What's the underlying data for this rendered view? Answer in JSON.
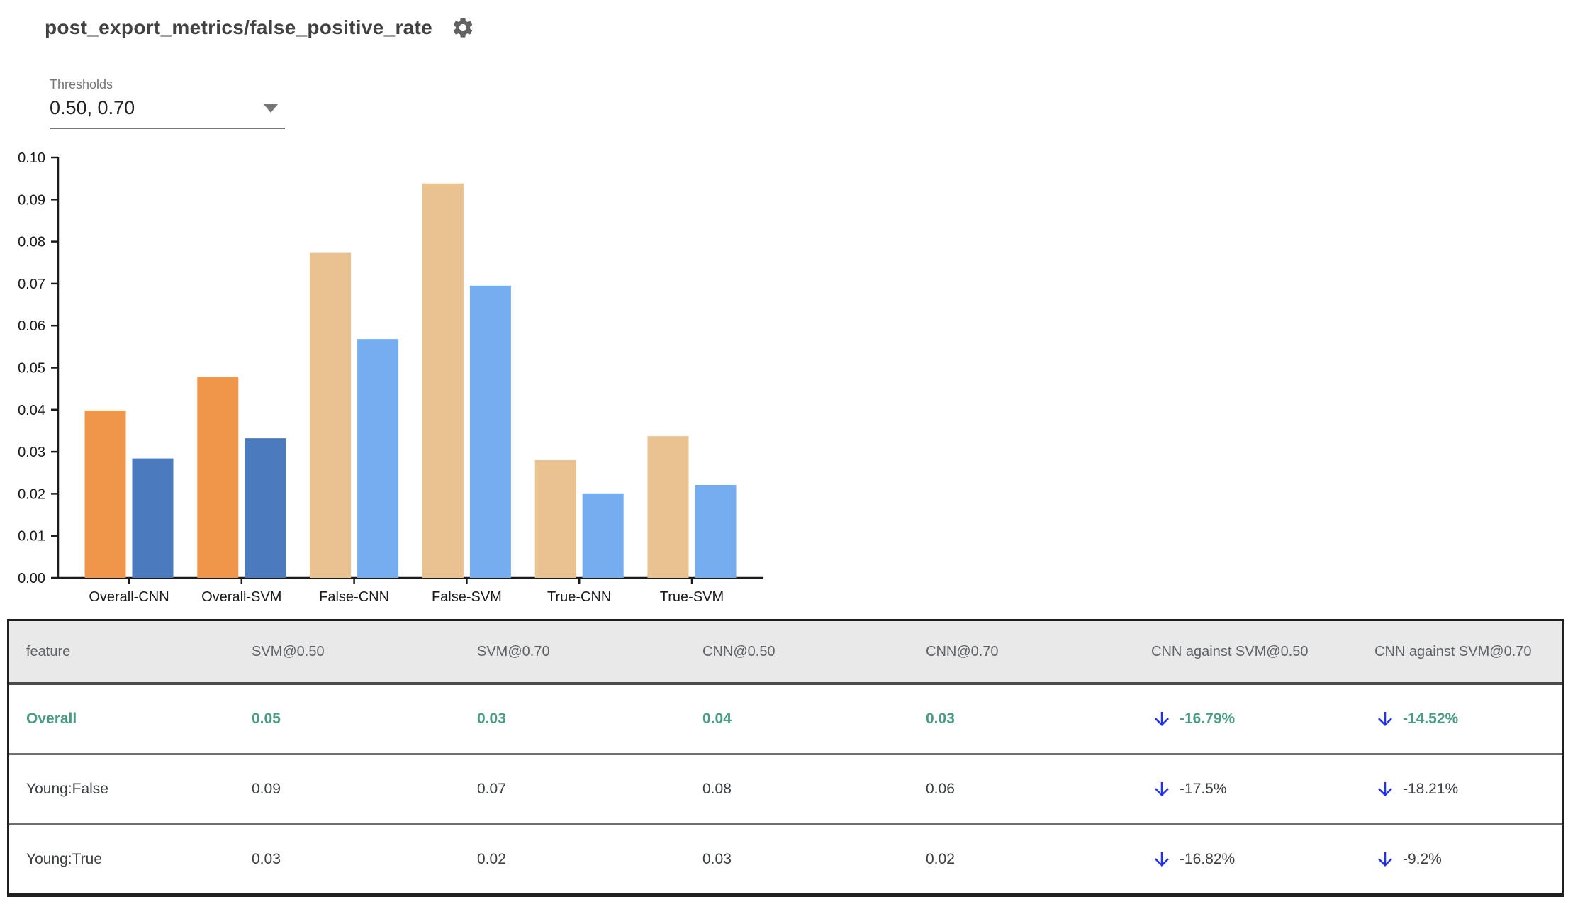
{
  "page": {
    "title": "post_export_metrics/false_positive_rate"
  },
  "thresholds": {
    "label": "Thresholds",
    "value": "0.50, 0.70"
  },
  "chart_data": {
    "type": "bar",
    "title": "post_export_metrics/false_positive_rate",
    "categories": [
      "Overall-CNN",
      "Overall-SVM",
      "False-CNN",
      "False-SVM",
      "True-CNN",
      "True-SVM"
    ],
    "series": [
      {
        "name": "threshold 0.50",
        "values": [
          0.0398,
          0.0478,
          0.0773,
          0.0938,
          0.028,
          0.0337
        ],
        "colors": [
          "#F0964A",
          "#F0964A",
          "#E9C28F",
          "#E9C28F",
          "#E9C28F",
          "#E9C28F"
        ]
      },
      {
        "name": "threshold 0.70",
        "values": [
          0.0284,
          0.0332,
          0.0568,
          0.0695,
          0.0201,
          0.0221
        ],
        "colors": [
          "#4B7BBE",
          "#4B7BBE",
          "#76ADF1",
          "#76ADF1",
          "#76ADF1",
          "#76ADF1"
        ]
      }
    ],
    "xlabel": "",
    "ylabel": "",
    "ylim": [
      0,
      0.1
    ],
    "ytick_step": 0.01,
    "ytick_labels": [
      "0.00",
      "0.01",
      "0.02",
      "0.03",
      "0.04",
      "0.05",
      "0.06",
      "0.07",
      "0.08",
      "0.09",
      "0.10"
    ],
    "grid": false,
    "legend": "none"
  },
  "table": {
    "columns": [
      "feature",
      "SVM@0.50",
      "SVM@0.70",
      "CNN@0.50",
      "CNN@0.70",
      "CNN against SVM@0.50",
      "CNN against SVM@0.70"
    ],
    "rows": [
      {
        "feature": "Overall",
        "values": [
          "0.05",
          "0.03",
          "0.04",
          "0.03"
        ],
        "comparisons": [
          {
            "direction": "down",
            "text": "-16.79%"
          },
          {
            "direction": "down",
            "text": "-14.52%"
          }
        ],
        "selected": true
      },
      {
        "feature": "Young:False",
        "values": [
          "0.09",
          "0.07",
          "0.08",
          "0.06"
        ],
        "comparisons": [
          {
            "direction": "down",
            "text": "-17.5%"
          },
          {
            "direction": "down",
            "text": "-18.21%"
          }
        ],
        "selected": false
      },
      {
        "feature": "Young:True",
        "values": [
          "0.03",
          "0.02",
          "0.03",
          "0.02"
        ],
        "comparisons": [
          {
            "direction": "down",
            "text": "-16.82%"
          },
          {
            "direction": "down",
            "text": "-9.2%"
          }
        ],
        "selected": false
      }
    ]
  },
  "colors": {
    "selected_row_green": "#4A9C85",
    "arrow_blue": "#2230EF",
    "bar_orange": "#F0964A",
    "bar_dark_blue": "#4B7BBE",
    "bar_tan": "#E9C28F",
    "bar_light_blue": "#76ADF1",
    "header_bg": "#E9E9E9",
    "axis": "#1B1B1B"
  }
}
